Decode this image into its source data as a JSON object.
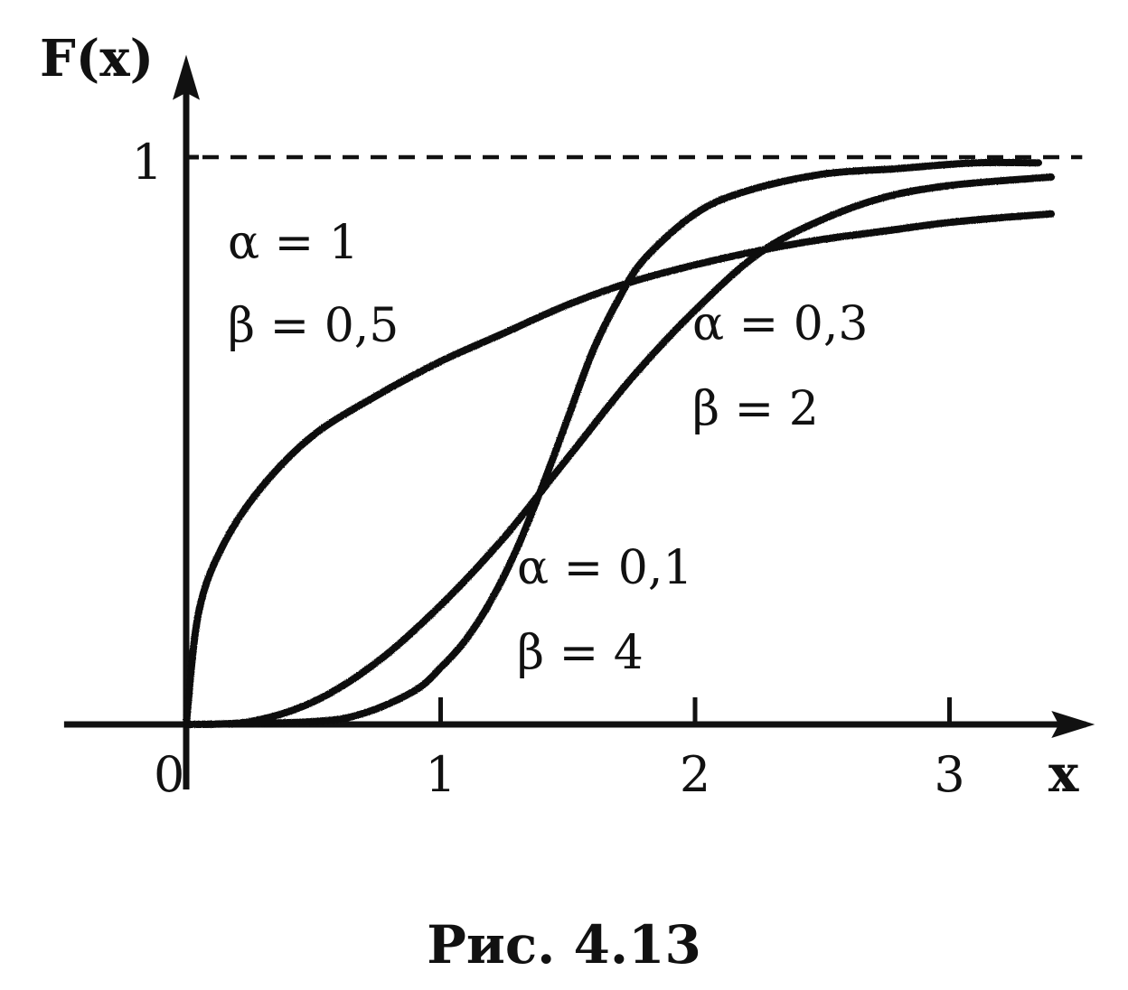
{
  "chart_data": {
    "type": "line",
    "xlabel": "x",
    "ylabel": "F(x)",
    "caption": "Рис. 4.13",
    "xlim": [
      -0.48,
      3.55
    ],
    "ylim": [
      0,
      1.12
    ],
    "x_ticks": [
      1,
      2,
      3
    ],
    "x_tick_labels": [
      "1",
      "2",
      "3"
    ],
    "y_ticks": [
      1
    ],
    "y_tick_labels": [
      "1"
    ],
    "origin_label": "0",
    "asymptote": {
      "y": 1,
      "style": "dashed"
    },
    "grid": false,
    "legend": "none",
    "line_color": "#111111",
    "series": [
      {
        "alpha_text": "α = 1",
        "beta_text": "β = 0,5",
        "alpha": 1,
        "beta": 0.5,
        "x": [
          0,
          0.05,
          0.15,
          0.3,
          0.5,
          0.75,
          1.0,
          1.25,
          1.5,
          1.75,
          2.0,
          2.25,
          2.5,
          2.75,
          3.0,
          3.25,
          3.4
        ],
        "y": [
          0,
          0.2,
          0.32,
          0.42,
          0.51,
          0.58,
          0.64,
          0.69,
          0.74,
          0.78,
          0.81,
          0.835,
          0.855,
          0.87,
          0.885,
          0.895,
          0.9
        ]
      },
      {
        "alpha_text": "α = 0,3",
        "beta_text": "β = 2",
        "alpha": 0.3,
        "beta": 2,
        "x": [
          0,
          0.25,
          0.5,
          0.75,
          1.0,
          1.25,
          1.5,
          1.75,
          2.0,
          2.25,
          2.5,
          2.75,
          3.0,
          3.25,
          3.4
        ],
        "y": [
          0,
          0.005,
          0.04,
          0.11,
          0.21,
          0.33,
          0.47,
          0.61,
          0.73,
          0.83,
          0.89,
          0.93,
          0.95,
          0.96,
          0.965
        ]
      },
      {
        "alpha_text": "α = 0,1",
        "beta_text": "β = 4",
        "alpha": 0.1,
        "beta": 4,
        "x": [
          0,
          0.5,
          0.7,
          0.9,
          1.0,
          1.1,
          1.2,
          1.3,
          1.4,
          1.5,
          1.6,
          1.7,
          1.8,
          2.0,
          2.2,
          2.5,
          2.8,
          3.1,
          3.35
        ],
        "y": [
          0,
          0.005,
          0.02,
          0.06,
          0.1,
          0.15,
          0.22,
          0.31,
          0.42,
          0.54,
          0.66,
          0.75,
          0.82,
          0.9,
          0.94,
          0.97,
          0.98,
          0.99,
          0.99
        ]
      }
    ]
  }
}
